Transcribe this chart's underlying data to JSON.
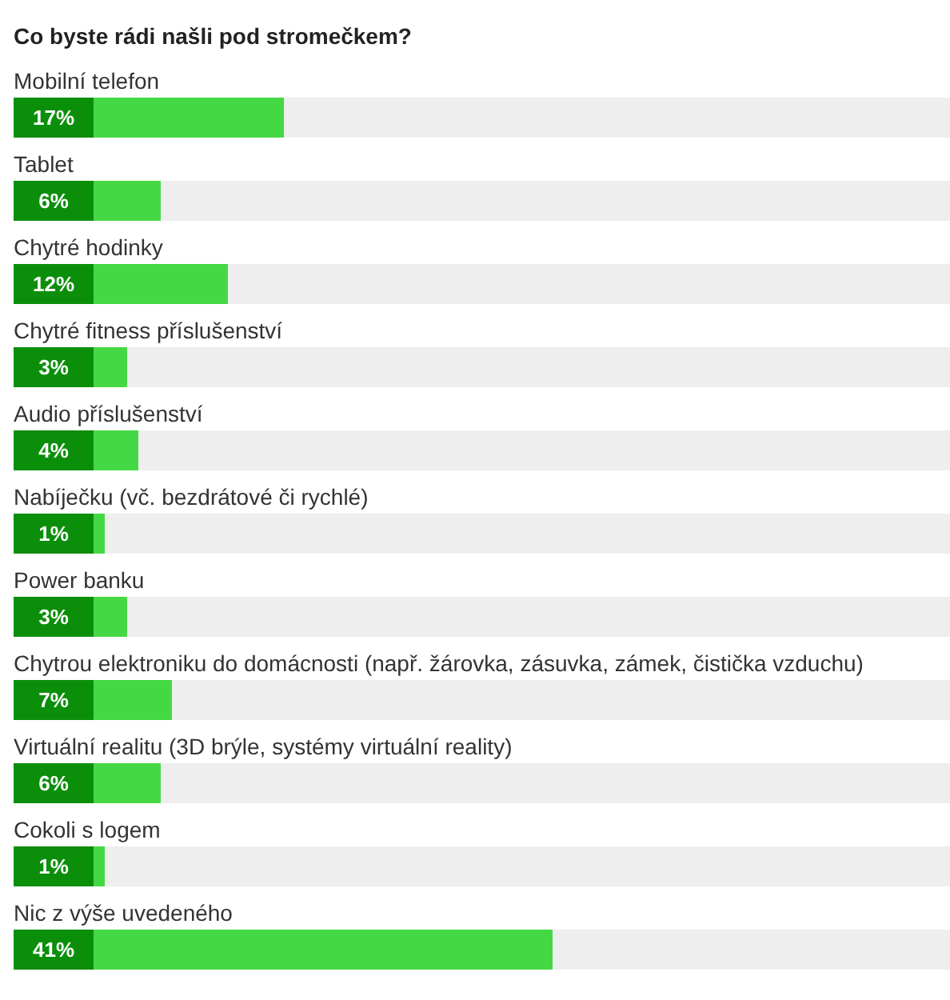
{
  "chart_data": {
    "type": "bar",
    "orientation": "horizontal",
    "title": "Co byste rádi našli pod stromečkem?",
    "categories": [
      "Mobilní telefon",
      "Tablet",
      "Chytré hodinky",
      "Chytré fitness příslušenství",
      "Audio příslušenství",
      "Nabíječku (vč. bezdrátové či rychlé)",
      "Power banku",
      "Chytrou elektroniku do domácnosti (např. žárovka, zásuvka, zámek, čistička vzduchu)",
      "Virtuální realitu (3D brýle, systémy virtuální reality)",
      "Cokoli s logem",
      "Nic z výše uvedeného"
    ],
    "values": [
      17,
      6,
      12,
      3,
      4,
      1,
      3,
      7,
      6,
      1,
      41
    ],
    "value_labels": [
      "17%",
      "6%",
      "12%",
      "3%",
      "4%",
      "1%",
      "3%",
      "7%",
      "6%",
      "1%",
      "41%"
    ],
    "color": "#45d845"
  }
}
